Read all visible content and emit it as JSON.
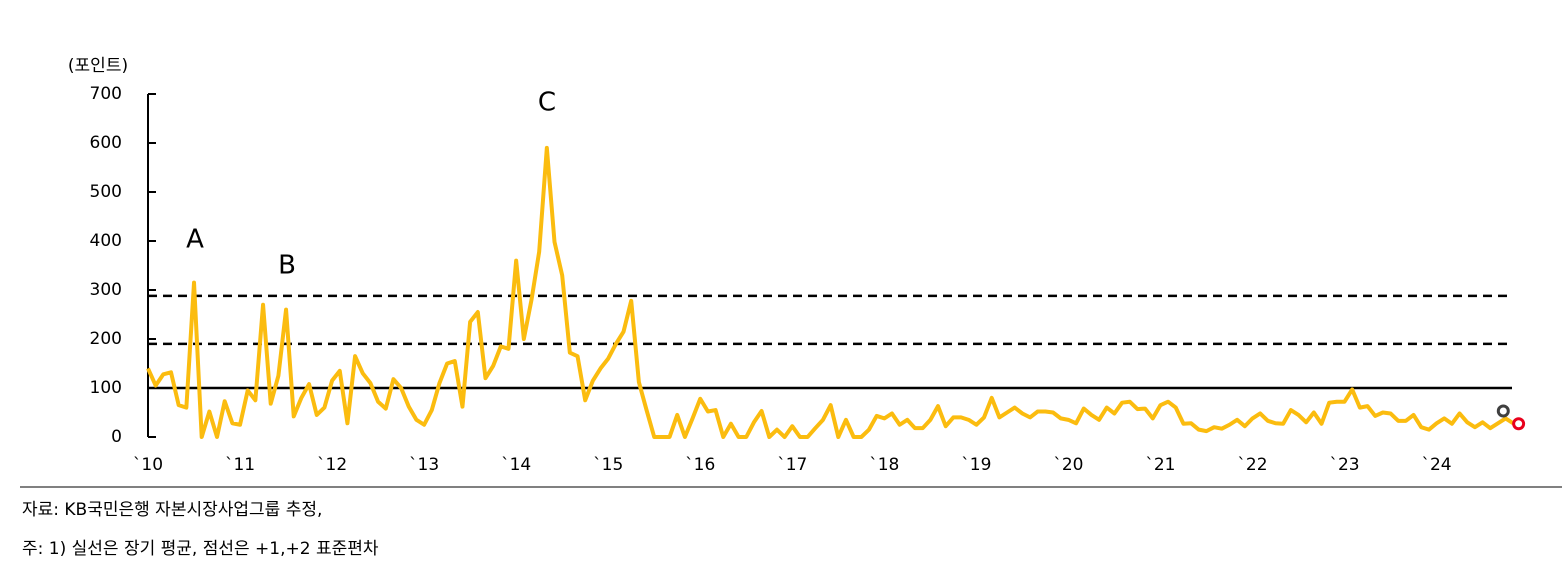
{
  "chart_data": {
    "type": "line",
    "y_label": "(포인트)",
    "categories": [
      "`10",
      null,
      null,
      null,
      null,
      null,
      null,
      null,
      null,
      null,
      null,
      null,
      "`11",
      null,
      null,
      null,
      null,
      null,
      null,
      null,
      null,
      null,
      null,
      null,
      "`12",
      null,
      null,
      null,
      null,
      null,
      null,
      null,
      null,
      null,
      null,
      null,
      "`13",
      null,
      null,
      null,
      null,
      null,
      null,
      null,
      null,
      null,
      null,
      null,
      "`14",
      null,
      null,
      null,
      null,
      null,
      null,
      null,
      null,
      null,
      null,
      null,
      "`15",
      null,
      null,
      null,
      null,
      null,
      null,
      null,
      null,
      null,
      null,
      null,
      "`16",
      null,
      null,
      null,
      null,
      null,
      null,
      null,
      null,
      null,
      null,
      null,
      "`17",
      null,
      null,
      null,
      null,
      null,
      null,
      null,
      null,
      null,
      null,
      null,
      "`18",
      null,
      null,
      null,
      null,
      null,
      null,
      null,
      null,
      null,
      null,
      null,
      "`19",
      null,
      null,
      null,
      null,
      null,
      null,
      null,
      null,
      null,
      null,
      null,
      "`20",
      null,
      null,
      null,
      null,
      null,
      null,
      null,
      null,
      null,
      null,
      null,
      "`21",
      null,
      null,
      null,
      null,
      null,
      null,
      null,
      null,
      null,
      null,
      null,
      "`22",
      null,
      null,
      null,
      null,
      null,
      null,
      null,
      null,
      null,
      null,
      null,
      "`23",
      null,
      null,
      null,
      null,
      null,
      null,
      null,
      null,
      null,
      null,
      null,
      "`24",
      null,
      null,
      null,
      null,
      null,
      null,
      null,
      null,
      null,
      null
    ],
    "series": [
      {
        "color": "#fbbc0f",
        "values": [
          140,
          105,
          128,
          132,
          65,
          60,
          315,
          0,
          52,
          0,
          73,
          28,
          25,
          95,
          75,
          270,
          68,
          125,
          260,
          42,
          80,
          108,
          45,
          60,
          115,
          135,
          28,
          165,
          130,
          110,
          72,
          58,
          118,
          100,
          62,
          35,
          25,
          55,
          110,
          150,
          155,
          62,
          235,
          255,
          120,
          145,
          185,
          180,
          360,
          200,
          280,
          378,
          590,
          398,
          330,
          172,
          165,
          75,
          115,
          140,
          160,
          190,
          215,
          278,
          112,
          55,
          0,
          0,
          0,
          45,
          0,
          38,
          78,
          52,
          55,
          0,
          27,
          0,
          0,
          30,
          53,
          0,
          15,
          0,
          22,
          0,
          0,
          18,
          35,
          65,
          0,
          35,
          0,
          0,
          15,
          43,
          38,
          48,
          25,
          35,
          18,
          18,
          35,
          63,
          22,
          40,
          40,
          35,
          25,
          40,
          80,
          40,
          50,
          60,
          48,
          40,
          52,
          52,
          50,
          38,
          35,
          28,
          58,
          45,
          35,
          60,
          48,
          70,
          72,
          57,
          58,
          38,
          65,
          72,
          60,
          27,
          28,
          15,
          12,
          20,
          17,
          25,
          35,
          22,
          38,
          48,
          33,
          28,
          27,
          55,
          45,
          30,
          50,
          27,
          70,
          72,
          72,
          97,
          60,
          63,
          43,
          50,
          48,
          33,
          33,
          45,
          20,
          15,
          28,
          38,
          27,
          48,
          30,
          20,
          30,
          18,
          28,
          38,
          28
        ]
      }
    ],
    "markers": [
      {
        "value": 53,
        "color": "#404040"
      },
      {
        "value": 27,
        "color": "#e8001c"
      }
    ],
    "hlines": [
      {
        "value": 100,
        "style": "solid"
      },
      {
        "value": 190,
        "style": "dashed"
      },
      {
        "value": 288,
        "style": "dashed"
      }
    ],
    "annotations": [
      "A",
      "B",
      "C"
    ],
    "ylim": [
      0,
      700
    ],
    "yticks": [
      0,
      100,
      200,
      300,
      400,
      500,
      600,
      700
    ],
    "notes": [
      "자료: KB국민은행 자본시장사업그룹 추정,",
      "주: 1) 실선은 장기 평균, 점선은 +1,+2 표준편차"
    ]
  }
}
